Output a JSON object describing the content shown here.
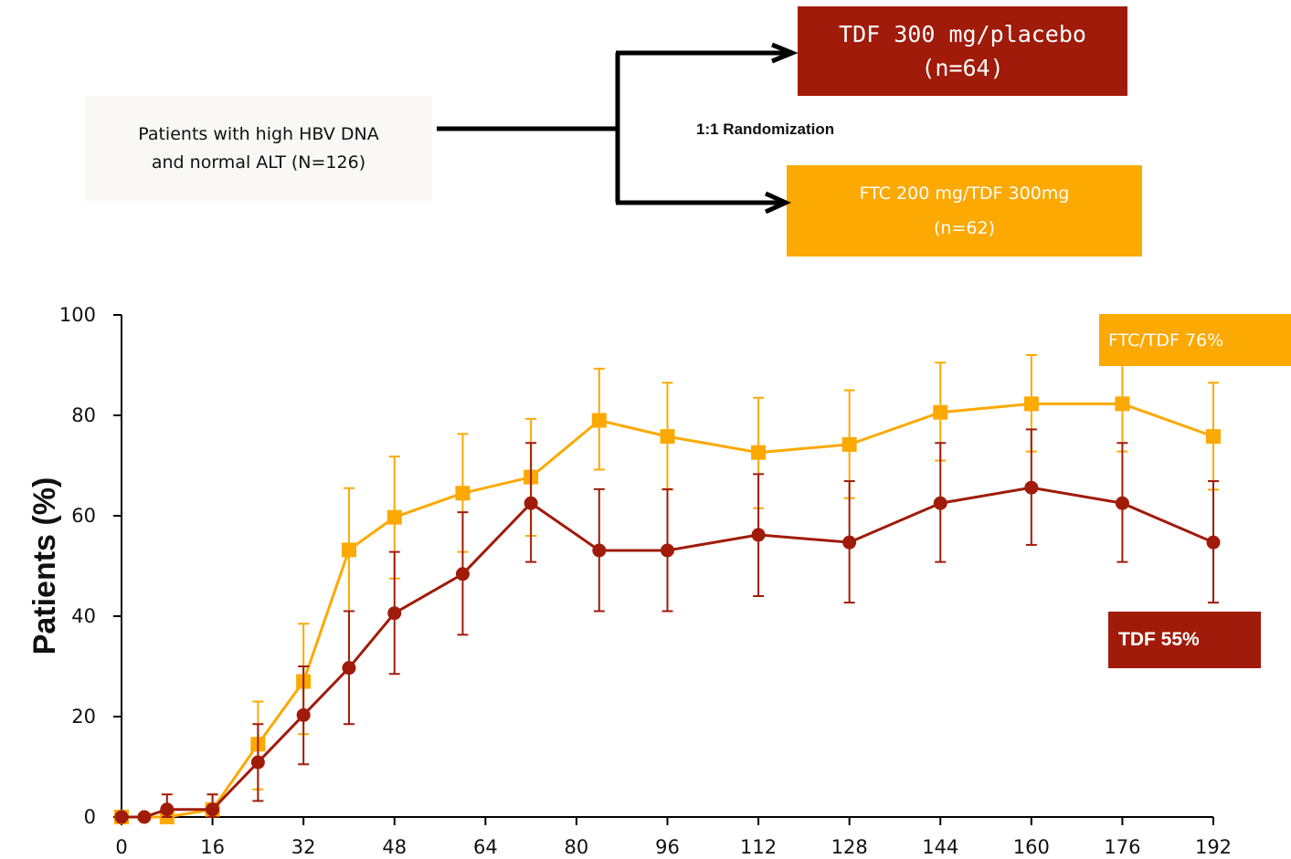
{
  "flow": {
    "patients_line1": "Patients with high HBV DNA",
    "patients_line2": "and normal ALT (N=126)",
    "randomization": "1:1 Randomization",
    "tdf_line1": "TDF 300 mg/placebo",
    "tdf_line2": "(n=64)",
    "ftc_line1": "FTC 200 mg/TDF 300mg",
    "ftc_line2": "(n=62)"
  },
  "labels": {
    "ftc_tdf": "FTC/TDF 76%",
    "tdf": "TDF 55%"
  },
  "colors": {
    "tdf": "#a01b0a",
    "ftc": "#fca903",
    "patients_box": "#f9f8f6"
  },
  "chart_data": {
    "type": "line",
    "title": "",
    "xlabel": "",
    "ylabel": "Patients (%)",
    "xlim": [
      0,
      192
    ],
    "ylim": [
      0,
      100
    ],
    "x_ticks": [
      0,
      16,
      32,
      48,
      64,
      80,
      96,
      112,
      128,
      144,
      160,
      176,
      192
    ],
    "y_ticks": [
      0,
      20,
      40,
      60,
      80,
      100
    ],
    "grid": false,
    "series": [
      {
        "key": "ftc",
        "marker": "square",
        "color": "#fca903",
        "points": [
          {
            "x": 0,
            "y": 0,
            "lo": 0,
            "hi": 0
          },
          {
            "x": 8,
            "y": 0,
            "lo": 0,
            "hi": 0
          },
          {
            "x": 16,
            "y": 1.5,
            "lo": 0,
            "hi": 4.5
          },
          {
            "x": 24,
            "y": 14.5,
            "lo": 5.5,
            "hi": 23
          },
          {
            "x": 32,
            "y": 27,
            "lo": 16.5,
            "hi": 38.5
          },
          {
            "x": 40,
            "y": 53.2,
            "lo": 41,
            "hi": 65.5
          },
          {
            "x": 48,
            "y": 59.7,
            "lo": 47.5,
            "hi": 71.8
          },
          {
            "x": 60,
            "y": 64.5,
            "lo": 52.8,
            "hi": 76.3
          },
          {
            "x": 72,
            "y": 67.7,
            "lo": 56,
            "hi": 79.3
          },
          {
            "x": 84,
            "y": 79,
            "lo": 69.2,
            "hi": 89.3
          },
          {
            "x": 96,
            "y": 75.8,
            "lo": 65.2,
            "hi": 86.5
          },
          {
            "x": 112,
            "y": 72.6,
            "lo": 61.5,
            "hi": 83.5
          },
          {
            "x": 128,
            "y": 74.2,
            "lo": 63.5,
            "hi": 85
          },
          {
            "x": 144,
            "y": 80.6,
            "lo": 71,
            "hi": 90.5
          },
          {
            "x": 160,
            "y": 82.3,
            "lo": 72.8,
            "hi": 92
          },
          {
            "x": 176,
            "y": 82.3,
            "lo": 72.8,
            "hi": 92
          },
          {
            "x": 192,
            "y": 75.8,
            "lo": 65.2,
            "hi": 86.5
          }
        ]
      },
      {
        "key": "tdf",
        "marker": "circle",
        "color": "#a01b0a",
        "points": [
          {
            "x": 0,
            "y": 0,
            "lo": 0,
            "hi": 0
          },
          {
            "x": 4,
            "y": 0,
            "lo": 0,
            "hi": 0
          },
          {
            "x": 8,
            "y": 1.5,
            "lo": 0,
            "hi": 4.5
          },
          {
            "x": 16,
            "y": 1.5,
            "lo": 0,
            "hi": 4.5
          },
          {
            "x": 24,
            "y": 10.9,
            "lo": 3.2,
            "hi": 18.5
          },
          {
            "x": 32,
            "y": 20.3,
            "lo": 10.5,
            "hi": 30
          },
          {
            "x": 40,
            "y": 29.7,
            "lo": 18.5,
            "hi": 41
          },
          {
            "x": 48,
            "y": 40.6,
            "lo": 28.5,
            "hi": 52.8
          },
          {
            "x": 60,
            "y": 48.4,
            "lo": 36.3,
            "hi": 60.7
          },
          {
            "x": 72,
            "y": 62.5,
            "lo": 50.8,
            "hi": 74.5
          },
          {
            "x": 84,
            "y": 53.1,
            "lo": 41,
            "hi": 65.3
          },
          {
            "x": 96,
            "y": 53.1,
            "lo": 41,
            "hi": 65.3
          },
          {
            "x": 112,
            "y": 56.2,
            "lo": 44,
            "hi": 68.3
          },
          {
            "x": 128,
            "y": 54.7,
            "lo": 42.7,
            "hi": 66.9
          },
          {
            "x": 144,
            "y": 62.5,
            "lo": 50.8,
            "hi": 74.5
          },
          {
            "x": 160,
            "y": 65.6,
            "lo": 54.2,
            "hi": 77.2
          },
          {
            "x": 176,
            "y": 62.5,
            "lo": 50.8,
            "hi": 74.5
          },
          {
            "x": 192,
            "y": 54.7,
            "lo": 42.7,
            "hi": 66.9
          }
        ]
      }
    ]
  }
}
